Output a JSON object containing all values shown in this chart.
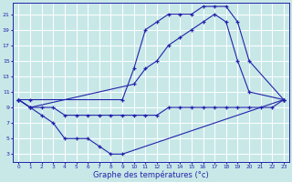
{
  "max_x": [
    0,
    1,
    9,
    10,
    11,
    12,
    13,
    14,
    15,
    16,
    17,
    18,
    19,
    20,
    23
  ],
  "max_y": [
    10,
    10,
    10,
    14,
    19,
    20,
    21,
    21,
    21,
    22,
    22,
    22,
    20,
    15,
    10
  ],
  "mean_x": [
    0,
    1,
    10,
    11,
    12,
    13,
    14,
    15,
    16,
    17,
    18,
    19,
    20,
    23
  ],
  "mean_y": [
    10,
    9,
    12,
    14,
    15,
    17,
    18,
    19,
    20,
    21,
    20,
    15,
    11,
    10
  ],
  "min_x": [
    0,
    1,
    2,
    3,
    4,
    5,
    6,
    7,
    8,
    9,
    23
  ],
  "min_y": [
    10,
    9,
    8,
    7,
    5,
    5,
    5,
    4,
    3,
    3,
    10
  ],
  "flat_x": [
    0,
    1,
    2,
    3,
    4,
    5,
    6,
    7,
    8,
    9,
    10,
    11,
    12,
    13,
    14,
    15,
    16,
    17,
    18,
    19,
    20,
    21,
    22,
    23
  ],
  "flat_y": [
    10,
    9,
    9,
    9,
    8,
    8,
    8,
    8,
    8,
    8,
    8,
    8,
    8,
    9,
    9,
    9,
    9,
    9,
    9,
    9,
    9,
    9,
    9,
    10
  ],
  "line_color": "#2222aa",
  "bg_color": "#c8e8e8",
  "grid_color": "#ffffff",
  "xlabel": "Graphe des températures (°c)",
  "yticks": [
    3,
    5,
    7,
    9,
    11,
    13,
    15,
    17,
    19,
    21
  ],
  "ytick_labels": [
    "3",
    "5",
    "7",
    "9",
    "11",
    "13",
    "15",
    "17",
    "19",
    "21"
  ],
  "xticks": [
    0,
    1,
    2,
    3,
    4,
    5,
    6,
    7,
    8,
    9,
    10,
    11,
    12,
    13,
    14,
    15,
    16,
    17,
    18,
    19,
    20,
    21,
    22,
    23
  ],
  "ylim": [
    2,
    22.5
  ],
  "xlim": [
    -0.5,
    23.5
  ]
}
